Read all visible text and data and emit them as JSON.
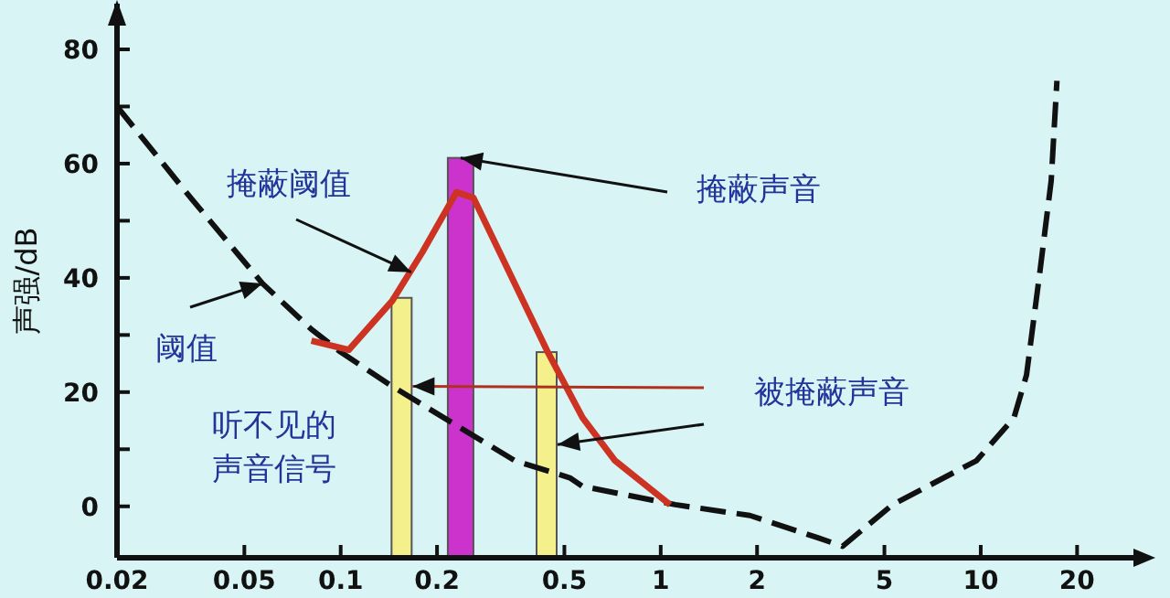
{
  "chart_data": {
    "type": "line",
    "ylabel": "声强/dB",
    "log": "x",
    "grid": false,
    "xlim": [
      0.02,
      30
    ],
    "ylim": [
      -9,
      88
    ],
    "xticks": [
      0.02,
      0.05,
      0.1,
      0.2,
      0.5,
      1,
      2,
      5,
      10,
      20
    ],
    "yticks": [
      0,
      {
        "value": 10,
        "label": null
      },
      20,
      {
        "value": 30,
        "label": null
      },
      40,
      {
        "value": 50,
        "label": null
      },
      60,
      {
        "value": 70,
        "label": null
      },
      80
    ],
    "series": [
      {
        "line_style": "dashed",
        "color": "#111111",
        "x": [
          0.02,
          0.034,
          0.057,
          0.081,
          0.1,
          0.145,
          0.225,
          0.35,
          0.52,
          0.57,
          1.11,
          1.9,
          3.1,
          3.7,
          5.3,
          9.7,
          12.7,
          13.9,
          15.3,
          16.6,
          17.3
        ],
        "values": [
          70,
          54,
          39,
          31,
          27,
          21,
          14.5,
          8,
          5,
          3.5,
          0.3,
          -1.6,
          -5.5,
          -7,
          0.3,
          8,
          15.5,
          23,
          41,
          57,
          74.5
        ]
      },
      {
        "line_style": "solid",
        "color": "#cc3322",
        "x": [
          0.081,
          0.106,
          0.145,
          0.18,
          0.23,
          0.26,
          0.44,
          0.57,
          0.72,
          1.07
        ],
        "values": [
          29,
          27.4,
          36,
          44.5,
          55,
          54,
          27.4,
          15.5,
          8,
          0.3
        ]
      },
      {
        "type": "bar",
        "color": "#f4f08c",
        "x": [
          0.155,
          0.44
        ],
        "base": [
          -9,
          -9
        ],
        "values": [
          45.5,
          36
        ]
      },
      {
        "type": "bar",
        "color": "#cc33cc",
        "x": [
          0.237
        ],
        "base": [
          -9
        ],
        "values": [
          70
        ]
      }
    ],
    "annotations": [
      {
        "text": "掩蔽阈值",
        "x": 0.166,
        "y": 41
      },
      {
        "text": "掩蔽声音",
        "x": 0.237,
        "y": 61
      },
      {
        "text": "阈值",
        "x": 0.057,
        "y": 39
      },
      "被掩蔽声音",
      "听不见的",
      "声音信号"
    ]
  }
}
